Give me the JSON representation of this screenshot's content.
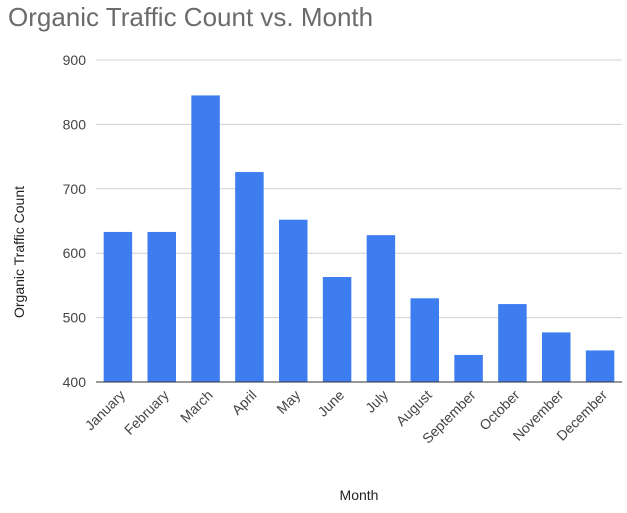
{
  "chart_data": {
    "type": "bar",
    "title": "Organic Traffic Count vs. Month",
    "xlabel": "Month",
    "ylabel": "Organic Traffic Count",
    "categories": [
      "January",
      "February",
      "March",
      "April",
      "May",
      "June",
      "July",
      "August",
      "September",
      "October",
      "November",
      "December"
    ],
    "values": [
      633,
      633,
      845,
      726,
      652,
      563,
      628,
      530,
      442,
      521,
      477,
      449
    ],
    "ylim": [
      400,
      900
    ],
    "yticks": [
      400,
      500,
      600,
      700,
      800,
      900
    ],
    "grid": true,
    "legend": "none",
    "colors": {
      "bar": "#3d7df0"
    }
  }
}
